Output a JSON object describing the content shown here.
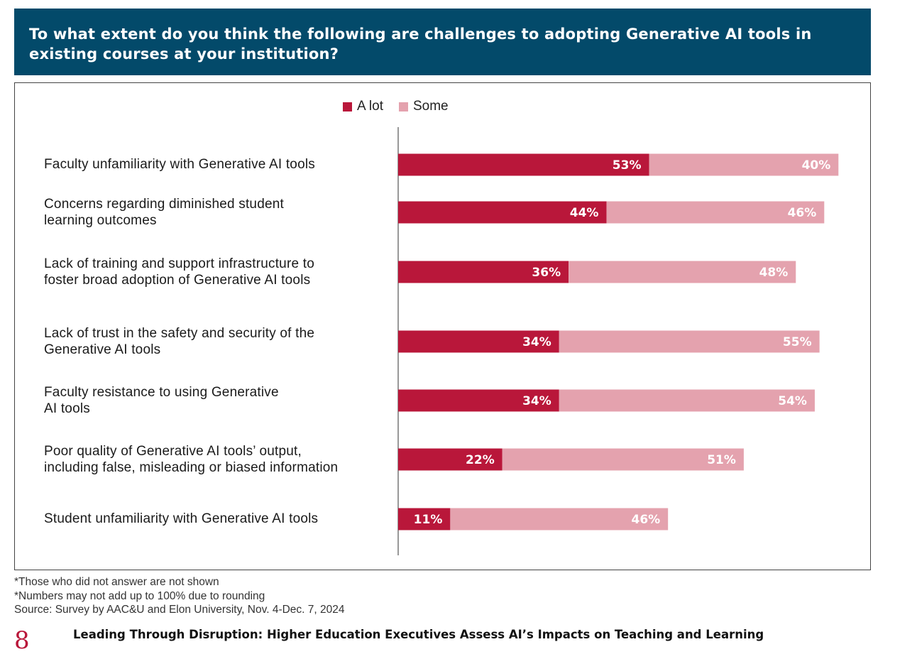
{
  "header": {
    "title": "To what extent do you think the following are challenges to adopting Generative AI tools in existing courses at your institution?"
  },
  "colors": {
    "a_lot": "#b9173a",
    "some": "#e4a2ae",
    "header_bg": "#034a6a"
  },
  "chart_data": {
    "type": "bar",
    "orientation": "horizontal",
    "stacked": true,
    "title": "To what extent do you think the following are challenges to adopting Generative AI tools in existing courses at your institution?",
    "legend": [
      "A lot",
      "Some"
    ],
    "legend_position": "top",
    "categories": [
      [
        "Faculty unfamiliarity with Generative AI tools"
      ],
      [
        "Concerns regarding diminished student",
        "learning outcomes"
      ],
      [
        "Lack of training and support infrastructure to",
        "foster broad adoption of Generative AI tools"
      ],
      [
        "Lack of trust in the safety and security of the",
        "Generative AI tools"
      ],
      [
        "Faculty resistance to using Generative",
        "AI tools"
      ],
      [
        "Poor quality of Generative AI tools’ output,",
        "including false, misleading or biased information"
      ],
      [
        "Student unfamiliarity with Generative AI tools"
      ]
    ],
    "series": [
      {
        "name": "A lot",
        "values": [
          53,
          44,
          36,
          34,
          34,
          22,
          11
        ],
        "labels": [
          "53%",
          "44%",
          "36%",
          "34%",
          "34%",
          "22%",
          "11%"
        ]
      },
      {
        "name": "Some",
        "values": [
          40,
          46,
          48,
          55,
          54,
          51,
          46
        ],
        "labels": [
          "40%",
          "46%",
          "48%",
          "55%",
          "54%",
          "51%",
          "46%"
        ]
      }
    ],
    "xlim": [
      0,
      100
    ],
    "xlabel": "",
    "ylabel": ""
  },
  "footnotes": {
    "note1": "*Those who did not answer are not shown",
    "note2": "*Numbers may not add up to 100% due to rounding",
    "source": "Source: Survey by AAC&U and Elon University, Nov. 4-Dec. 7, 2024"
  },
  "footer": {
    "page_number": "8",
    "report_title": "Leading Through Disruption: Higher Education Executives Assess AI’s Impacts on Teaching and Learning"
  }
}
